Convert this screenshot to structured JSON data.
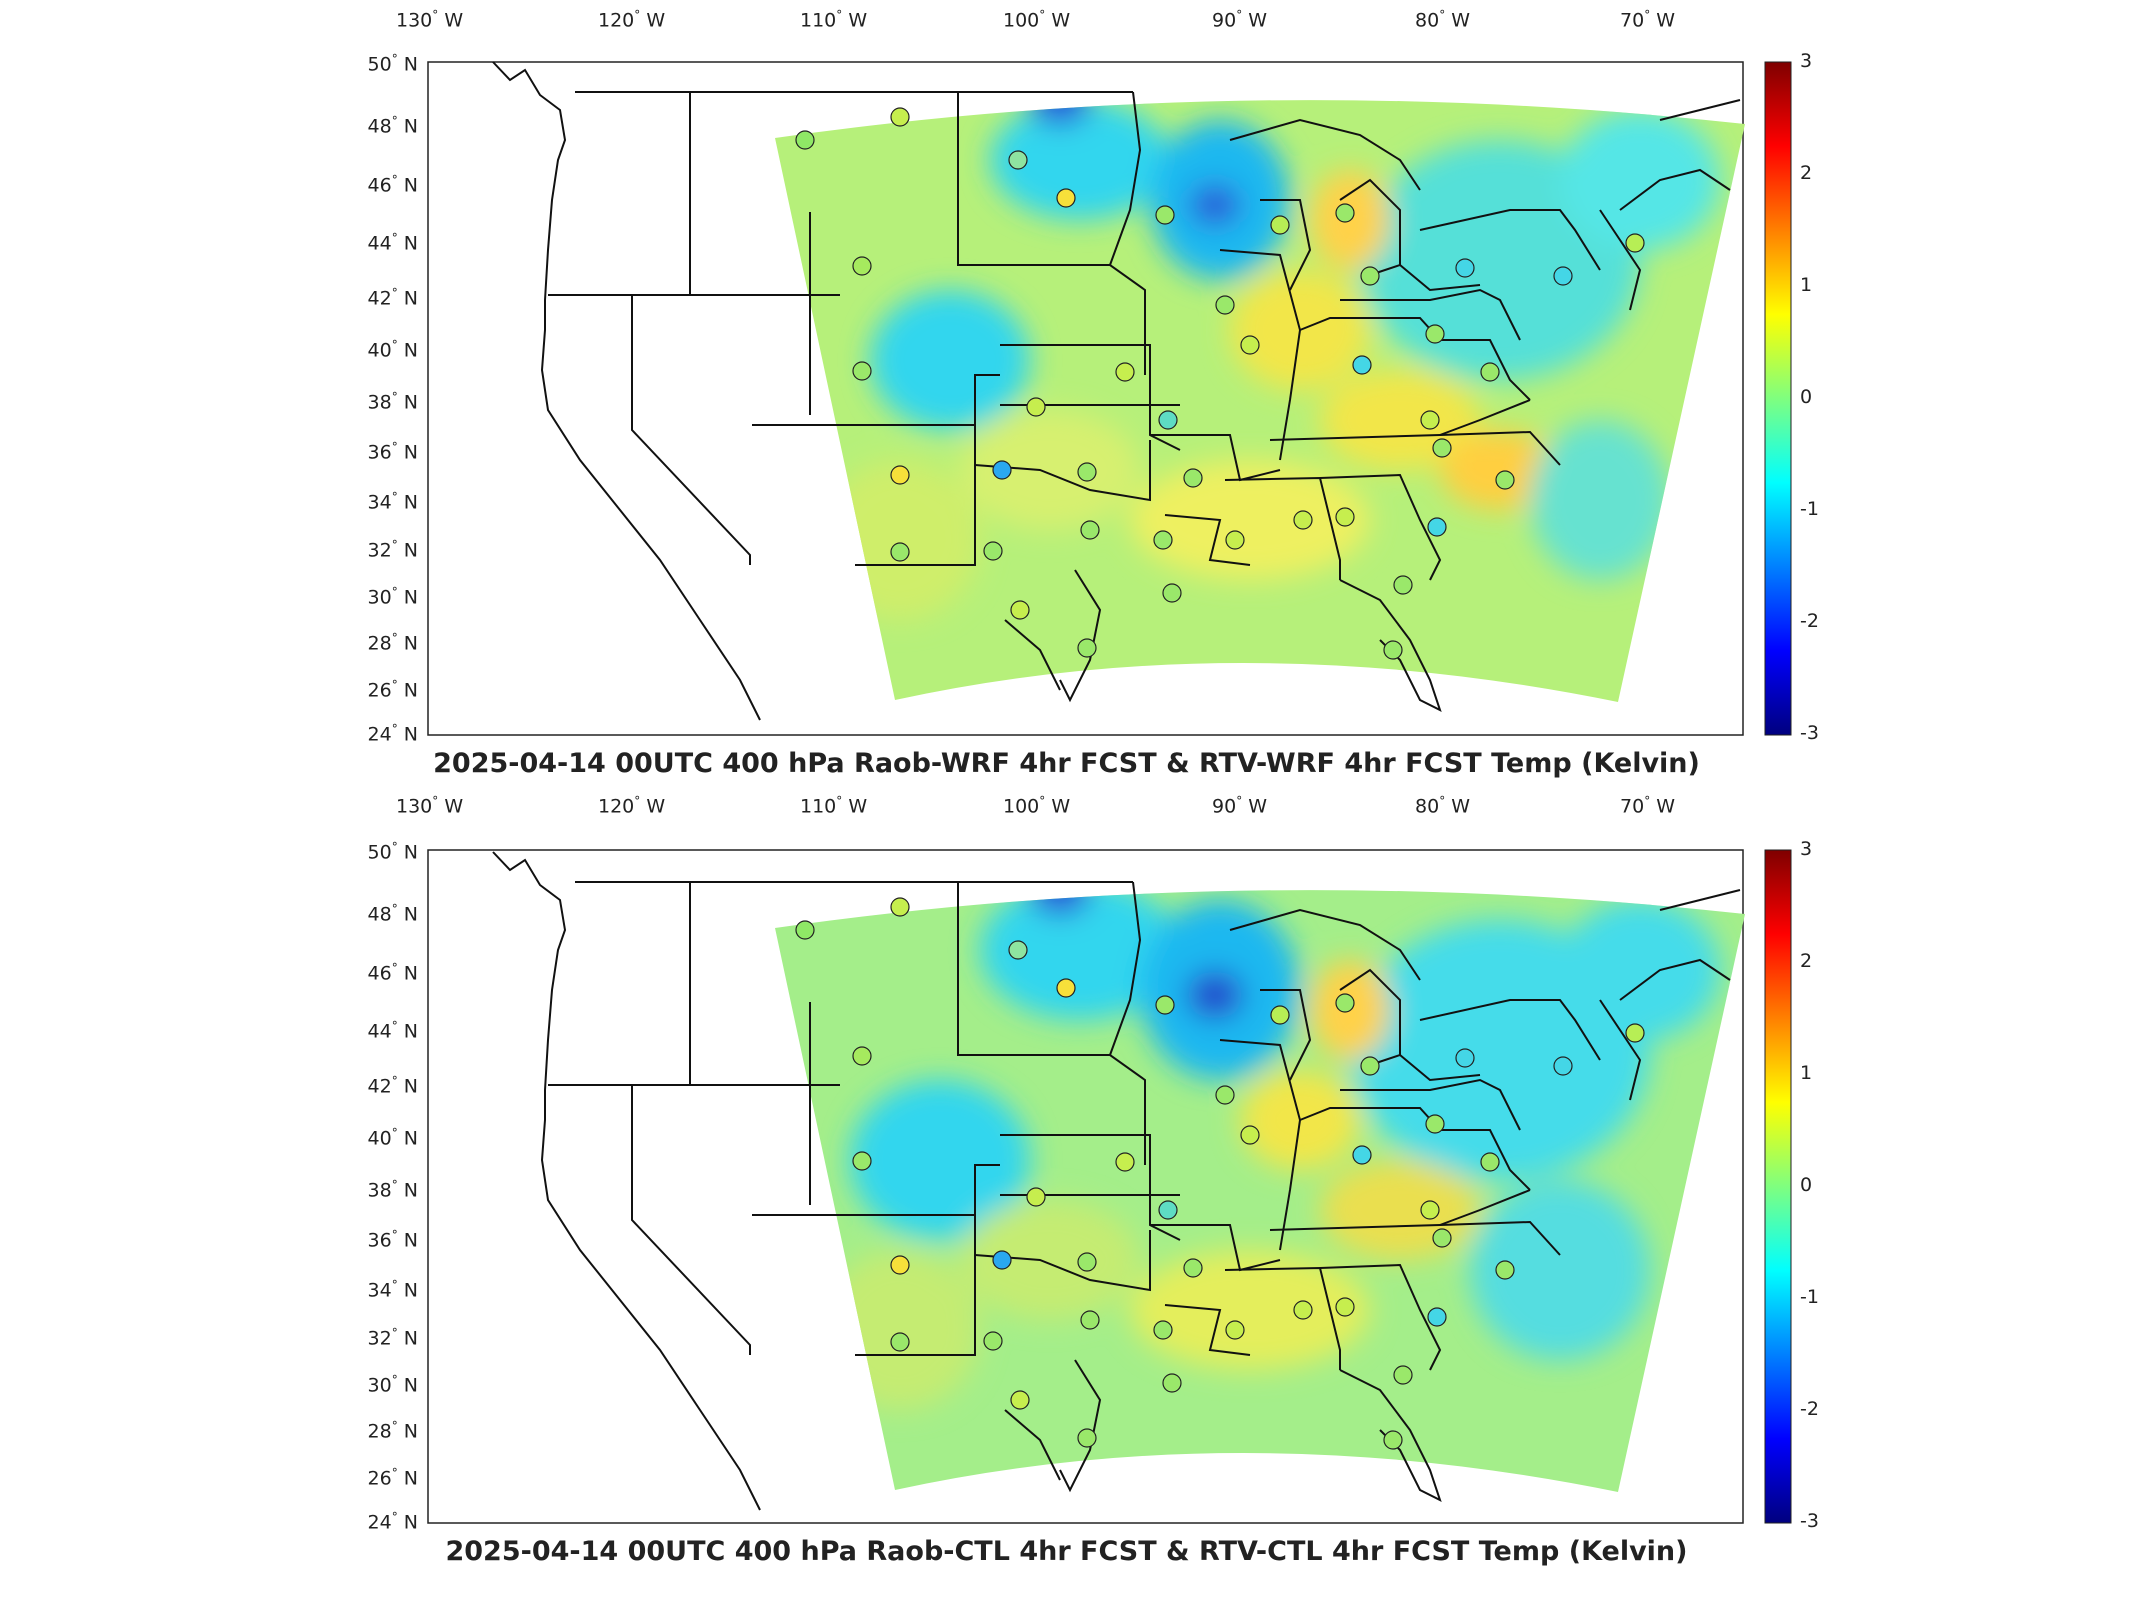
{
  "panels": [
    {
      "title": "2025-04-14 00UTC 400 hPa Raob-WRF 4hr FCST & RTV-WRF 4hr FCST Temp (Kelvin)"
    },
    {
      "title": "2025-04-14 00UTC 400 hPa Raob-CTL 4hr FCST & RTV-CTL 4hr FCST Temp (Kelvin)"
    }
  ],
  "lon_labels": [
    "130",
    "120",
    "110",
    "100",
    "90",
    "80",
    "70"
  ],
  "lon_suffix": "W",
  "lat_labels": [
    "50",
    "48",
    "46",
    "44",
    "42",
    "40",
    "38",
    "36",
    "34",
    "32",
    "30",
    "28",
    "26",
    "24"
  ],
  "lat_suffix": "N",
  "colorbar": {
    "ticks": [
      "3",
      "2",
      "1",
      "0",
      "-1",
      "-2",
      "-3"
    ],
    "range": [
      -3,
      3
    ],
    "colormap": "jet"
  },
  "colors": {
    "field_base": "#b6f07a",
    "cool": "#33d6ee",
    "warm": "#f2e64a",
    "cold_spot": "#2244cc"
  }
}
